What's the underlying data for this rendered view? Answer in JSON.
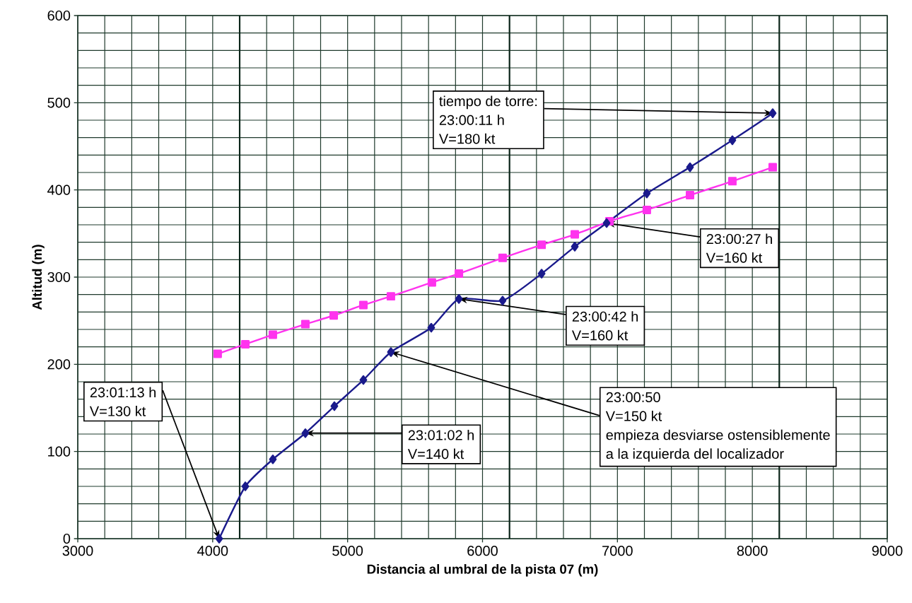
{
  "chart_data": {
    "type": "line",
    "xlabel": "Distancia al umbral de la pista 07 (m)",
    "ylabel": "Altitud (m)",
    "xlim": [
      3000,
      9000
    ],
    "ylim": [
      0,
      600
    ],
    "xticks": [
      3000,
      4000,
      5000,
      6000,
      7000,
      8000,
      9000
    ],
    "yticks": [
      0,
      100,
      200,
      300,
      400,
      500,
      600
    ],
    "grid": true,
    "series": [
      {
        "color": "#1a1a8c",
        "marker": "diamond",
        "x": [
          4048,
          4242,
          4446,
          4687,
          4902,
          5117,
          5321,
          5620,
          5825,
          6149,
          6438,
          6684,
          6920,
          7218,
          7538,
          7852,
          8151
        ],
        "values": [
          0,
          60,
          91,
          121,
          152,
          182,
          214,
          242,
          275,
          273,
          304,
          335,
          362,
          396,
          426,
          457,
          488
        ]
      },
      {
        "color": "#ff33ee",
        "marker": "square",
        "x": [
          4037,
          4242,
          4446,
          4687,
          4897,
          5117,
          5321,
          5625,
          5825,
          6149,
          6438,
          6684,
          6941,
          7218,
          7538,
          7852,
          8151
        ],
        "values": [
          212,
          223,
          234,
          246,
          256,
          268,
          278,
          294,
          304,
          322,
          337,
          349,
          364,
          377,
          394,
          410,
          426
        ]
      }
    ],
    "ref_lines": [
      {
        "axis": "x",
        "value": 4200,
        "color": "#0a2418"
      },
      {
        "axis": "x",
        "value": 6200,
        "color": "#0a2418"
      },
      {
        "axis": "x",
        "value": 8200,
        "color": "#0a2418"
      }
    ],
    "annotations": [
      {
        "text": "tiempo de torre:",
        "x": 8151,
        "y": 488
      },
      "23:00:11 h",
      "V=180 kt",
      {
        "text": "23:00:27 h",
        "x": 6920,
        "y": 362
      },
      "V=160 kt",
      {
        "text": "23:00:42 h",
        "x": 5825,
        "y": 275
      },
      "V=160 kt",
      {
        "text": "23:00:50",
        "x": 5321,
        "y": 214
      },
      "V=150 kt",
      "empieza desviarse ostensiblemente",
      "a la izquierda del localizador",
      {
        "text": "23:01:02 h",
        "x": 4687,
        "y": 121
      },
      "V=140 kt",
      {
        "text": "23:01:13 h",
        "x": 4048,
        "y": 0
      },
      "V=130 kt"
    ]
  }
}
